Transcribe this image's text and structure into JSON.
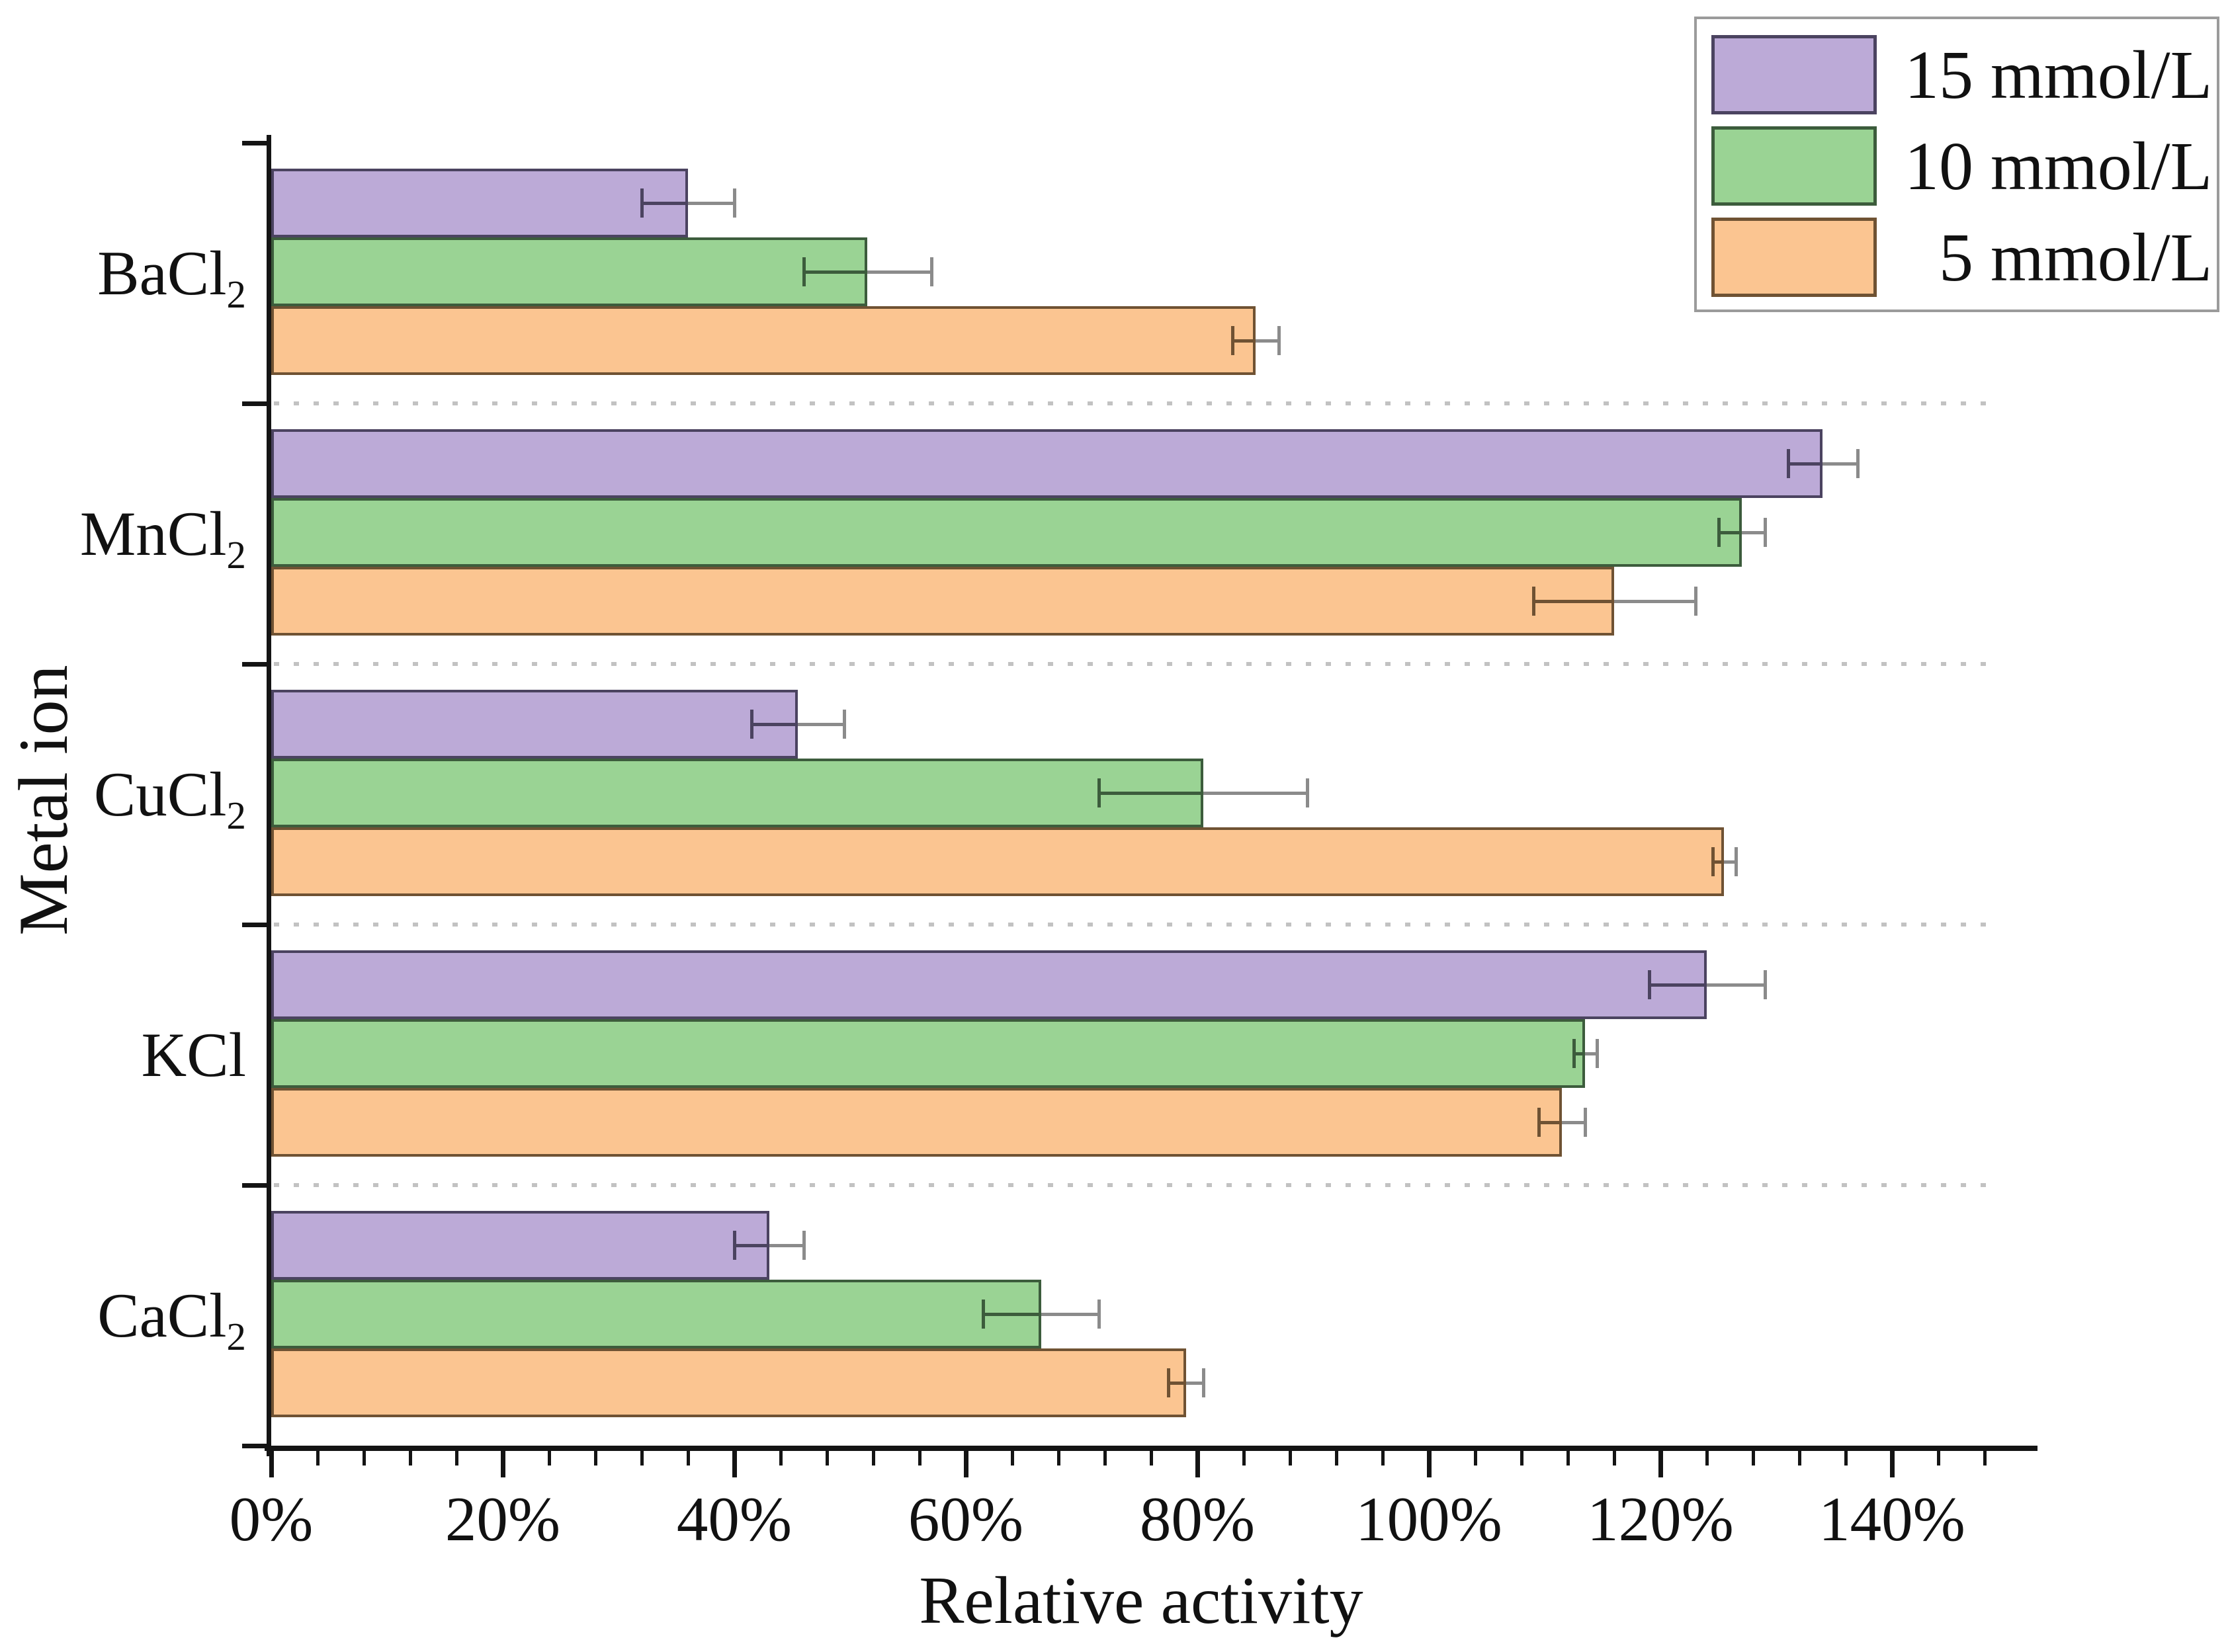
{
  "chart_data": {
    "type": "bar",
    "orientation": "horizontal",
    "title": "",
    "xlabel": "Relative activity",
    "ylabel": "Metal ion",
    "categories": [
      "BaCl2",
      "MnCl2",
      "CuCl2",
      "KCl",
      "CaCl2"
    ],
    "category_display": [
      {
        "base": "BaCl",
        "sub": "2"
      },
      {
        "base": "MnCl",
        "sub": "2"
      },
      {
        "base": "CuCl",
        "sub": "2"
      },
      {
        "base": "KCl",
        "sub": ""
      },
      {
        "base": "CaCl",
        "sub": "2"
      }
    ],
    "series": [
      {
        "name": "15 mmol/L",
        "color": "#bcaad7",
        "border_color": "#4b4360",
        "values_pct": [
          36,
          134,
          45.5,
          124,
          43
        ],
        "errors_pct": [
          4,
          3,
          4,
          5,
          3
        ]
      },
      {
        "name": "10 mmol/L",
        "color": "#9ad394",
        "border_color": "#3c5c3c",
        "values_pct": [
          51.5,
          127,
          80.5,
          113.5,
          66.5
        ],
        "errors_pct": [
          5.5,
          2,
          9,
          1,
          5
        ]
      },
      {
        "name": "5 mmol/L",
        "color": "#fbc591",
        "border_color": "#6f5233",
        "values_pct": [
          85,
          116,
          125.5,
          111.5,
          79
        ],
        "errors_pct": [
          2,
          7,
          1,
          2,
          1.5
        ]
      }
    ],
    "x_tick_labels": [
      "0%",
      "20%",
      "40%",
      "60%",
      "80%",
      "100%",
      "120%",
      "140%"
    ],
    "x_major_step_pct": 20,
    "x_minor_step_pct": 4,
    "xlim_pct": [
      0,
      152
    ],
    "legend_position": "top-right",
    "grid": "dotted horizontal separators between metal-ion groups",
    "error_bar_color": "#8b8b8b",
    "separator_color": "#c2c2c2",
    "axis_color": "#141414"
  }
}
